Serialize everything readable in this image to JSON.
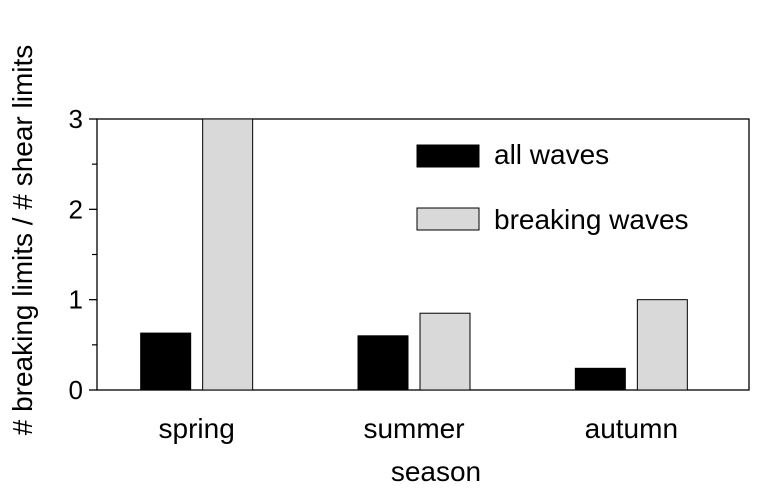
{
  "chart_data": {
    "type": "bar",
    "title": "",
    "xlabel": "season",
    "ylabel": "# breaking limits / # shear limits",
    "categories": [
      "spring",
      "summer",
      "autumn"
    ],
    "series": [
      {
        "name": "all waves",
        "values": [
          0.63,
          0.6,
          0.24
        ],
        "color": "#000000"
      },
      {
        "name": "breaking waves",
        "values": [
          3.0,
          0.85,
          1.0
        ],
        "color": "#d9d9d9"
      }
    ],
    "ylim": [
      0,
      3
    ],
    "yticks": [
      "0",
      "1",
      "2",
      "3"
    ],
    "grid": false,
    "legend": "top-right"
  }
}
